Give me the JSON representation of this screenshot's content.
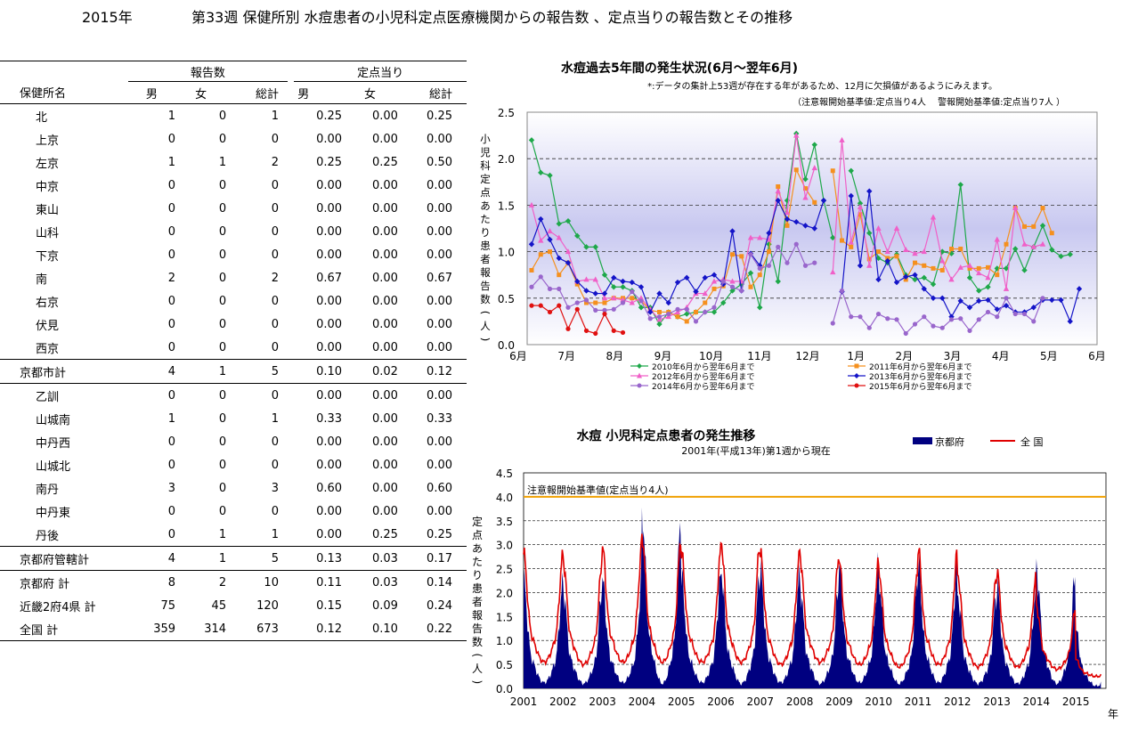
{
  "header": {
    "year": "2015年",
    "title": "第33週 保健所別 水痘患者の小児科定点医療機関からの報告数 、定点当りの報告数とその推移"
  },
  "table": {
    "group_reports": "報告数",
    "group_per_site": "定点当り",
    "col_name": "保健所名",
    "cols": [
      "男",
      "女",
      "総計",
      "男",
      "女",
      "総計"
    ],
    "rows": [
      {
        "name": "北",
        "v": [
          "1",
          "0",
          "1",
          "0.25",
          "0.00",
          "0.25"
        ],
        "kind": "sub1"
      },
      {
        "name": "上京",
        "v": [
          "0",
          "0",
          "0",
          "0.00",
          "0.00",
          "0.00"
        ],
        "kind": "sub1"
      },
      {
        "name": "左京",
        "v": [
          "1",
          "1",
          "2",
          "0.25",
          "0.25",
          "0.50"
        ],
        "kind": "sub1"
      },
      {
        "name": "中京",
        "v": [
          "0",
          "0",
          "0",
          "0.00",
          "0.00",
          "0.00"
        ],
        "kind": "sub1"
      },
      {
        "name": "東山",
        "v": [
          "0",
          "0",
          "0",
          "0.00",
          "0.00",
          "0.00"
        ],
        "kind": "sub1"
      },
      {
        "name": "山科",
        "v": [
          "0",
          "0",
          "0",
          "0.00",
          "0.00",
          "0.00"
        ],
        "kind": "sub1"
      },
      {
        "name": "下京",
        "v": [
          "0",
          "0",
          "0",
          "0.00",
          "0.00",
          "0.00"
        ],
        "kind": "sub1"
      },
      {
        "name": "南",
        "v": [
          "2",
          "0",
          "2",
          "0.67",
          "0.00",
          "0.67"
        ],
        "kind": "sub1"
      },
      {
        "name": "右京",
        "v": [
          "0",
          "0",
          "0",
          "0.00",
          "0.00",
          "0.00"
        ],
        "kind": "sub1"
      },
      {
        "name": "伏見",
        "v": [
          "0",
          "0",
          "0",
          "0.00",
          "0.00",
          "0.00"
        ],
        "kind": "sub1"
      },
      {
        "name": "西京",
        "v": [
          "0",
          "0",
          "0",
          "0.00",
          "0.00",
          "0.00"
        ],
        "kind": "sub1"
      },
      {
        "name": "京都市計",
        "v": [
          "4",
          "1",
          "5",
          "0.10",
          "0.02",
          "0.12"
        ],
        "kind": "total"
      },
      {
        "name": "乙訓",
        "v": [
          "0",
          "0",
          "0",
          "0.00",
          "0.00",
          "0.00"
        ],
        "kind": "sub1"
      },
      {
        "name": "山城南",
        "v": [
          "1",
          "0",
          "1",
          "0.33",
          "0.00",
          "0.33"
        ],
        "kind": "sub1"
      },
      {
        "name": "中丹西",
        "v": [
          "0",
          "0",
          "0",
          "0.00",
          "0.00",
          "0.00"
        ],
        "kind": "sub1"
      },
      {
        "name": "山城北",
        "v": [
          "0",
          "0",
          "0",
          "0.00",
          "0.00",
          "0.00"
        ],
        "kind": "sub1"
      },
      {
        "name": "南丹",
        "v": [
          "3",
          "0",
          "3",
          "0.60",
          "0.00",
          "0.60"
        ],
        "kind": "sub1"
      },
      {
        "name": "中丹東",
        "v": [
          "0",
          "0",
          "0",
          "0.00",
          "0.00",
          "0.00"
        ],
        "kind": "sub1"
      },
      {
        "name": "丹後",
        "v": [
          "0",
          "1",
          "1",
          "0.00",
          "0.25",
          "0.25"
        ],
        "kind": "sub1"
      },
      {
        "name": "京都府管轄計",
        "v": [
          "4",
          "1",
          "5",
          "0.13",
          "0.03",
          "0.17"
        ],
        "kind": "total"
      },
      {
        "name": "京都府  計",
        "v": [
          "8",
          "2",
          "10",
          "0.11",
          "0.03",
          "0.14"
        ],
        "kind": "total"
      },
      {
        "name": "近畿2府4県  計",
        "v": [
          "75",
          "45",
          "120",
          "0.15",
          "0.09",
          "0.24"
        ],
        "kind": "total"
      },
      {
        "name": "全国  計",
        "v": [
          "359",
          "314",
          "673",
          "0.12",
          "0.10",
          "0.22"
        ],
        "kind": "total"
      }
    ]
  },
  "chart_data": [
    {
      "type": "line",
      "title": "水痘過去5年間の発生状況(6月～翌年6月)",
      "note1": "*:データの集計上53週が存在する年があるため、12月に欠損値があるようにみえます。",
      "note2": "（注意報開始基準値:定点当り4人　 警報開始基準値:定点当り7人 ）",
      "ylabel": "小児科定点あたり患者報告数(人)",
      "ylim": [
        0,
        2.5
      ],
      "yticks": [
        "0.0",
        "0.5",
        "1.0",
        "1.5",
        "2.0",
        "2.5"
      ],
      "xticks": [
        "6月",
        "7月",
        "8月",
        "9月",
        "10月",
        "11月",
        "12月",
        "1月",
        "2月",
        "3月",
        "4月",
        "5月",
        "6月"
      ],
      "grid": "dashed",
      "legend": "bottom",
      "series": [
        {
          "name": "2010年6月から翌年6月まで",
          "color": "#1ea84a",
          "marker": "diamond",
          "values": [
            2.2,
            1.85,
            1.82,
            1.3,
            1.33,
            1.17,
            1.05,
            1.05,
            0.75,
            0.62,
            0.62,
            0.58,
            0.4,
            0.4,
            0.22,
            0.35,
            0.3,
            0.33,
            0.35,
            0.35,
            0.35,
            0.45,
            0.58,
            0.65,
            0.77,
            0.4,
            1.08,
            0.68,
            1.55,
            2.27,
            1.78,
            2.15,
            1.55,
            1.15,
            null,
            1.87,
            1.52,
            1.2,
            0.93,
            0.88,
            0.97,
            0.75,
            0.7,
            0.72,
            0.65,
            1.0,
            0.98,
            1.72,
            0.72,
            0.58,
            0.62,
            0.82,
            0.82,
            1.03,
            0.8,
            1.05,
            1.28,
            1.02,
            0.95,
            0.97
          ]
        },
        {
          "name": "2011年6月から翌年6月まで",
          "color": "#f5901e",
          "marker": "square",
          "values": [
            0.8,
            0.97,
            1.0,
            0.75,
            0.88,
            0.65,
            0.45,
            0.45,
            0.45,
            0.5,
            0.5,
            0.5,
            0.47,
            0.37,
            0.35,
            0.35,
            0.3,
            0.25,
            0.35,
            0.45,
            0.6,
            0.63,
            0.97,
            0.95,
            0.62,
            0.75,
            1.0,
            1.7,
            1.28,
            1.88,
            1.68,
            1.53,
            null,
            1.87,
            1.12,
            1.05,
            1.4,
            0.92,
            1.0,
            0.93,
            0.95,
            0.7,
            0.88,
            0.85,
            0.82,
            0.8,
            1.03,
            1.03,
            0.82,
            0.82,
            0.83,
            0.75,
            1.08,
            1.47,
            1.27,
            1.27,
            1.47,
            1.2
          ]
        },
        {
          "name": "2012年6月から翌年6月まで",
          "color": "#f060c8",
          "marker": "triangle",
          "values": [
            1.5,
            1.12,
            1.22,
            1.15,
            1.0,
            0.68,
            0.7,
            0.7,
            0.5,
            0.5,
            0.48,
            0.45,
            0.5,
            0.38,
            0.27,
            0.3,
            0.35,
            0.4,
            0.55,
            0.55,
            0.68,
            0.7,
            0.68,
            0.68,
            1.15,
            1.15,
            1.13,
            1.65,
            1.42,
            2.25,
            1.58,
            1.9,
            null,
            0.78,
            2.2,
            1.1,
            1.48,
            0.85,
            1.25,
            1.0,
            1.25,
            1.02,
            0.98,
            1.0,
            1.37,
            0.9,
            0.7,
            0.83,
            0.85,
            0.77,
            0.72,
            1.13,
            0.6,
            1.47,
            1.08,
            1.05,
            1.08
          ]
        },
        {
          "name": "2013年6月から翌年6月まで",
          "color": "#1414c8",
          "marker": "diamond",
          "values": [
            1.08,
            1.35,
            1.13,
            0.93,
            0.88,
            0.68,
            0.58,
            0.55,
            0.55,
            0.72,
            0.68,
            0.67,
            0.62,
            0.35,
            0.55,
            0.45,
            0.67,
            0.72,
            0.57,
            0.72,
            0.75,
            0.65,
            1.22,
            0.58,
            0.98,
            0.85,
            1.2,
            1.55,
            1.35,
            1.32,
            1.28,
            1.25,
            1.55,
            null,
            0.57,
            1.6,
            0.85,
            1.65,
            0.7,
            0.9,
            0.67,
            0.73,
            0.75,
            0.6,
            0.5,
            0.5,
            0.3,
            0.47,
            0.4,
            0.47,
            0.48,
            0.38,
            0.42,
            0.35,
            0.35,
            0.4,
            0.48,
            0.48,
            0.48,
            0.25,
            0.6
          ]
        },
        {
          "name": "2014年6月から翌年6月まで",
          "color": "#9966cc",
          "marker": "circle",
          "values": [
            0.62,
            0.73,
            0.6,
            0.6,
            0.4,
            0.45,
            0.48,
            0.37,
            0.37,
            0.38,
            0.45,
            0.57,
            0.47,
            0.28,
            0.3,
            0.33,
            0.38,
            0.38,
            0.25,
            0.35,
            0.4,
            0.68,
            0.62,
            0.58,
            0.97,
            0.82,
            0.85,
            1.05,
            0.88,
            1.08,
            0.85,
            0.88,
            null,
            0.23,
            0.58,
            0.3,
            0.3,
            0.18,
            0.33,
            0.28,
            0.27,
            0.12,
            0.22,
            0.3,
            0.2,
            0.18,
            0.27,
            0.28,
            0.15,
            0.27,
            0.35,
            0.3,
            0.5,
            0.33,
            0.33,
            0.25,
            0.5
          ]
        },
        {
          "name": "2015年6月から翌年6月まで",
          "color": "#e01010",
          "marker": "circle",
          "values": [
            0.42,
            0.42,
            0.35,
            0.42,
            0.17,
            0.38,
            0.15,
            0.12,
            0.33,
            0.15,
            0.13
          ]
        }
      ]
    },
    {
      "type": "area",
      "title": "水痘  小児科定点患者の発生推移",
      "subtitle": "2001年(平成13年)第1週から現在",
      "ylabel": "定点あたり患者報告数(人)",
      "xlabel": "年",
      "ylim": [
        0,
        4.5
      ],
      "yticks": [
        "0.0",
        "0.5",
        "1.0",
        "1.5",
        "2.0",
        "2.5",
        "3.0",
        "3.5",
        "4.0",
        "4.5"
      ],
      "xticks": [
        "2001",
        "2002",
        "2003",
        "2004",
        "2005",
        "2006",
        "2007",
        "2008",
        "2009",
        "2010",
        "2011",
        "2012",
        "2013",
        "2014",
        "2015"
      ],
      "threshold": {
        "value": 4.0,
        "label": "注意報開始基準値(定点当り4人)",
        "color": "#f0a000"
      },
      "series": [
        {
          "name": "京都府",
          "color": "#000080",
          "kind": "area",
          "yearly": [
            {
              "peak": 2.2,
              "trough": 0.12
            },
            {
              "peak": 2.1,
              "trough": 0.1
            },
            {
              "peak": 2.2,
              "trough": 0.12
            },
            {
              "peak": 3.7,
              "trough": 0.1
            },
            {
              "peak": 2.3,
              "trough": 0.12
            },
            {
              "peak": 2.5,
              "trough": 0.1
            },
            {
              "peak": 2.4,
              "trough": 0.12
            },
            {
              "peak": 2.2,
              "trough": 0.1
            },
            {
              "peak": 2.5,
              "trough": 0.12
            },
            {
              "peak": 2.3,
              "trough": 0.1
            },
            {
              "peak": 2.6,
              "trough": 0.12
            },
            {
              "peak": 2.0,
              "trough": 0.1
            },
            {
              "peak": 2.1,
              "trough": 0.1
            },
            {
              "peak": 2.5,
              "trough": 0.1
            },
            {
              "peak": 1.2,
              "trough": 0.05
            }
          ]
        },
        {
          "name": "全 国",
          "color": "#e00000",
          "kind": "line",
          "yearly": [
            {
              "peak": 2.8,
              "trough": 0.55
            },
            {
              "peak": 2.7,
              "trough": 0.5
            },
            {
              "peak": 2.9,
              "trough": 0.55
            },
            {
              "peak": 3.2,
              "trough": 0.55
            },
            {
              "peak": 2.8,
              "trough": 0.55
            },
            {
              "peak": 3.1,
              "trough": 0.55
            },
            {
              "peak": 2.8,
              "trough": 0.5
            },
            {
              "peak": 2.8,
              "trough": 0.55
            },
            {
              "peak": 2.6,
              "trough": 0.5
            },
            {
              "peak": 2.5,
              "trough": 0.45
            },
            {
              "peak": 2.9,
              "trough": 0.5
            },
            {
              "peak": 2.4,
              "trough": 0.45
            },
            {
              "peak": 2.4,
              "trough": 0.45
            },
            {
              "peak": 1.7,
              "trough": 0.4
            },
            {
              "peak": 0.6,
              "trough": 0.25
            }
          ]
        }
      ]
    }
  ]
}
